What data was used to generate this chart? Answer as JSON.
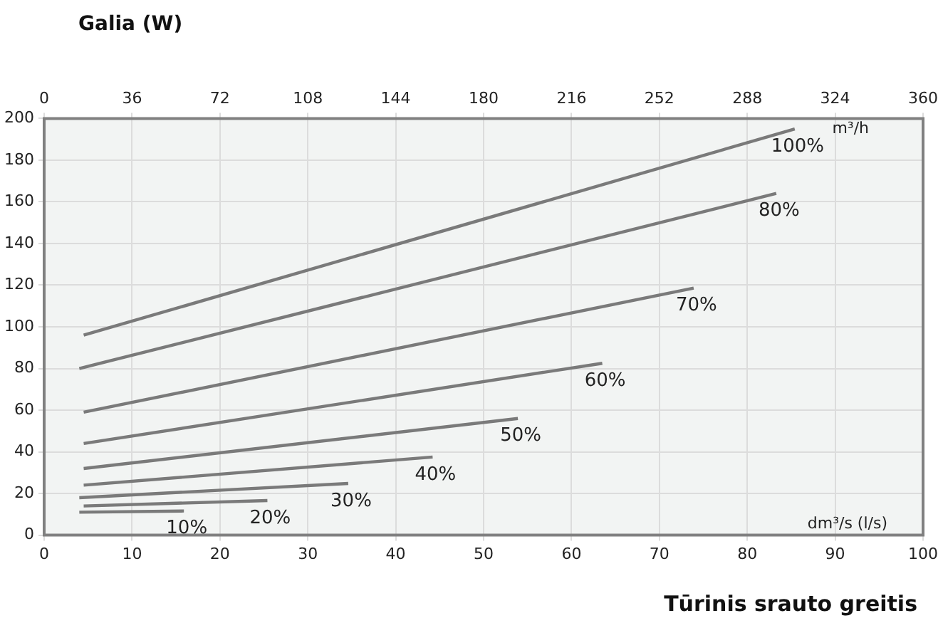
{
  "chart_data": {
    "type": "line",
    "ylabel": "Galia (W)",
    "xlabel": "Tūrinis srauto greitis",
    "annotations": [
      "m³/h",
      "dm³/s (l/s)"
    ],
    "xlim": [
      0,
      100
    ],
    "xticks": [
      0,
      10,
      20,
      30,
      40,
      50,
      60,
      70,
      80,
      90,
      100
    ],
    "x2lim": [
      0,
      360
    ],
    "x2ticks": [
      0,
      36,
      72,
      108,
      144,
      180,
      216,
      252,
      288,
      324,
      360
    ],
    "ylim": [
      0,
      200
    ],
    "yticks": [
      0,
      20,
      40,
      60,
      80,
      100,
      120,
      140,
      160,
      180,
      200
    ],
    "grid": true,
    "legend": false,
    "marker": "none",
    "line_style": "solid",
    "series": [
      {
        "name": "100%",
        "color": "#7a7a7a",
        "x": [
          4.5,
          85.4
        ],
        "values": [
          96,
          195
        ]
      },
      {
        "name": "80%",
        "color": "#7a7a7a",
        "x": [
          4,
          83.3
        ],
        "values": [
          80,
          164
        ]
      },
      {
        "name": "70%",
        "color": "#7a7a7a",
        "x": [
          4.5,
          73.9
        ],
        "values": [
          59,
          118.6
        ]
      },
      {
        "name": "60%",
        "color": "#7a7a7a",
        "x": [
          4.5,
          63.5
        ],
        "values": [
          44,
          82.5
        ]
      },
      {
        "name": "50%",
        "color": "#7a7a7a",
        "x": [
          4.5,
          53.9
        ],
        "values": [
          32,
          56
        ]
      },
      {
        "name": "40%",
        "color": "#7a7a7a",
        "x": [
          4.5,
          44.2
        ],
        "values": [
          24,
          37.5
        ]
      },
      {
        "name": "30%",
        "color": "#7a7a7a",
        "x": [
          4,
          34.6
        ],
        "values": [
          18,
          24.8
        ]
      },
      {
        "name": "20%",
        "color": "#7a7a7a",
        "x": [
          4.5,
          25.4
        ],
        "values": [
          14,
          16.6
        ]
      },
      {
        "name": "10%",
        "color": "#7a7a7a",
        "x": [
          4,
          15.9
        ],
        "values": [
          11,
          11.6
        ]
      }
    ]
  }
}
